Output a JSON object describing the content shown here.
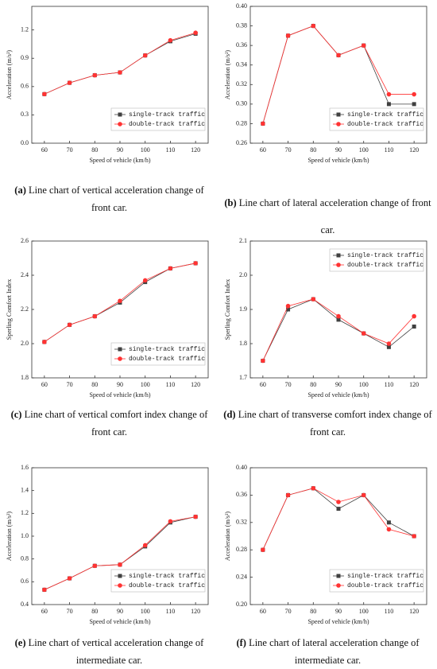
{
  "chart_data": [
    {
      "type": "line",
      "y_label": "Acceleration (m/s²)",
      "x_label": "Speed of vehicle (km/h)",
      "x": [
        60,
        70,
        80,
        90,
        100,
        110,
        120
      ],
      "xlim": [
        55,
        125
      ],
      "xticks": [
        60,
        70,
        80,
        90,
        100,
        110,
        120
      ],
      "ylim": [
        0,
        1.45
      ],
      "yticks": [
        {
          "value": 0,
          "label": "0.0"
        },
        0.3,
        0.6,
        0.9,
        1.2
      ],
      "legend": "lower right",
      "series": [
        {
          "name": "single-track traffic",
          "color": "#404040",
          "marker": "square",
          "values": [
            0.52,
            0.64,
            0.72,
            0.75,
            0.93,
            1.08,
            1.16
          ]
        },
        {
          "name": "double-track traffic",
          "color": "#ff3333",
          "marker": "circle",
          "values": [
            0.52,
            0.64,
            0.72,
            0.75,
            0.93,
            1.09,
            1.17
          ]
        }
      ],
      "caption_label": "(a)",
      "caption": "Line chart of vertical acceleration change of front car."
    },
    {
      "type": "line",
      "y_label": "Acceleration (m/s²)",
      "x_label": "Speed of vehicle (km/h)",
      "x": [
        60,
        70,
        80,
        90,
        100,
        110,
        120
      ],
      "xlim": [
        55,
        125
      ],
      "xticks": [
        60,
        70,
        80,
        90,
        100,
        110,
        120
      ],
      "ylim": [
        0.26,
        0.4
      ],
      "yticks": [
        0.26,
        0.28,
        {
          "value": 0.3,
          "label": "0.30"
        },
        0.32,
        0.34,
        0.36,
        0.38,
        {
          "value": 0.4,
          "label": "0.40"
        }
      ],
      "legend": "lower right",
      "series": [
        {
          "name": "single-track traffic",
          "color": "#404040",
          "marker": "square",
          "values": [
            0.28,
            0.37,
            0.38,
            0.35,
            0.36,
            0.3,
            0.3
          ]
        },
        {
          "name": "double-track traffic",
          "color": "#ff3333",
          "marker": "circle",
          "values": [
            0.28,
            0.37,
            0.38,
            0.35,
            0.36,
            0.31,
            0.31
          ]
        }
      ],
      "caption_label": "(b)",
      "caption": "Line chart of lateral acceleration change of front car."
    },
    {
      "type": "line",
      "y_label": "Sperling Comfort Index",
      "x_label": "Speed of vehicle (km/h)",
      "x": [
        60,
        70,
        80,
        90,
        100,
        110,
        120
      ],
      "xlim": [
        55,
        125
      ],
      "xticks": [
        60,
        70,
        80,
        90,
        100,
        110,
        120
      ],
      "ylim": [
        1.8,
        2.6
      ],
      "yticks": [
        1.8,
        {
          "value": 2,
          "label": "2.0"
        },
        2.2,
        2.4,
        2.6
      ],
      "legend": "lower right",
      "series": [
        {
          "name": "single-track traffic",
          "color": "#404040",
          "marker": "square",
          "values": [
            2.01,
            2.11,
            2.16,
            2.24,
            2.36,
            2.44,
            2.47
          ]
        },
        {
          "name": "double-track traffic",
          "color": "#ff3333",
          "marker": "circle",
          "values": [
            2.01,
            2.11,
            2.16,
            2.25,
            2.37,
            2.44,
            2.47
          ]
        }
      ],
      "caption_label": "(c)",
      "caption": "Line chart of vertical comfort index change of front car."
    },
    {
      "type": "line",
      "y_label": "Sperling Comfort Index",
      "x_label": "Speed of vehicle (km/h)",
      "x": [
        60,
        70,
        80,
        90,
        100,
        110,
        120
      ],
      "xlim": [
        55,
        125
      ],
      "xticks": [
        60,
        70,
        80,
        90,
        100,
        110,
        120
      ],
      "ylim": [
        1.7,
        2.1
      ],
      "yticks": [
        1.7,
        1.8,
        1.9,
        {
          "value": 2,
          "label": "2.0"
        },
        2.1
      ],
      "legend": "upper right",
      "series": [
        {
          "name": "single-track traffic",
          "color": "#404040",
          "marker": "square",
          "values": [
            1.75,
            1.9,
            1.93,
            1.87,
            1.83,
            1.79,
            1.85
          ]
        },
        {
          "name": "double-track traffic",
          "color": "#ff3333",
          "marker": "circle",
          "values": [
            1.75,
            1.91,
            1.93,
            1.88,
            1.83,
            1.8,
            1.88
          ]
        }
      ],
      "caption_label": "(d)",
      "caption": "Line chart of transverse comfort index change of front car."
    },
    {
      "type": "line",
      "y_label": "Acceleration (m/s²)",
      "x_label": "Speed of vehicle (km/h)",
      "x": [
        60,
        70,
        80,
        90,
        100,
        110,
        120
      ],
      "xlim": [
        55,
        125
      ],
      "xticks": [
        60,
        70,
        80,
        90,
        100,
        110,
        120
      ],
      "ylim": [
        0.4,
        1.6
      ],
      "yticks": [
        0.4,
        0.6,
        0.8,
        {
          "value": 1,
          "label": "1.0"
        },
        1.2,
        1.4,
        1.6
      ],
      "legend": "lower right",
      "series": [
        {
          "name": "single-track traffic",
          "color": "#404040",
          "marker": "square",
          "values": [
            0.53,
            0.63,
            0.74,
            0.75,
            0.91,
            1.12,
            1.17
          ]
        },
        {
          "name": "double-track traffic",
          "color": "#ff3333",
          "marker": "circle",
          "values": [
            0.53,
            0.63,
            0.74,
            0.75,
            0.92,
            1.13,
            1.17
          ]
        }
      ],
      "caption_label": "(e)",
      "caption": "Line chart of vertical acceleration change of intermediate car."
    },
    {
      "type": "line",
      "y_label": "Acceleration (m/s²)",
      "x_label": "Speed of vehicle (km/h)",
      "x": [
        60,
        70,
        80,
        90,
        100,
        110,
        120
      ],
      "xlim": [
        55,
        125
      ],
      "xticks": [
        60,
        70,
        80,
        90,
        100,
        110,
        120
      ],
      "ylim": [
        0.2,
        0.4
      ],
      "yticks": [
        {
          "value": 0.2,
          "label": "0.20"
        },
        0.24,
        0.28,
        0.32,
        0.36,
        {
          "value": 0.4,
          "label": "0.40"
        }
      ],
      "legend": "lower right",
      "series": [
        {
          "name": "single-track traffic",
          "color": "#404040",
          "marker": "square",
          "values": [
            0.28,
            0.36,
            0.37,
            0.34,
            0.36,
            0.32,
            0.3
          ]
        },
        {
          "name": "double-track traffic",
          "color": "#ff3333",
          "marker": "circle",
          "values": [
            0.28,
            0.36,
            0.37,
            0.35,
            0.36,
            0.31,
            0.3
          ]
        }
      ],
      "caption_label": "(f)",
      "caption": "Line chart of lateral acceleration change of intermediate car."
    }
  ]
}
